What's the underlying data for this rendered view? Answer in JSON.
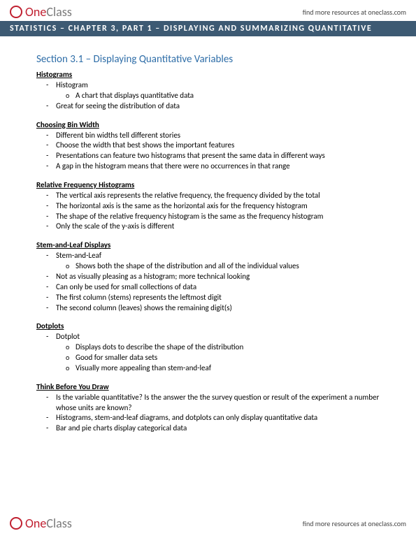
{
  "brand": {
    "one": "One",
    "class": "Class"
  },
  "header_link": "find more resources at oneclass.com",
  "banner": "STATISTICS – CHAPTER 3, PART 1 – DISPLAYING AND SUMMARIZING QUANTITATIVE",
  "section_title": "Section 3.1 – Displaying Quantitative Variables",
  "sections": [
    {
      "heading": "Histograms",
      "items": [
        {
          "text": "Histogram",
          "sub": [
            "A chart that displays quantitative data"
          ]
        },
        {
          "text": "Great for seeing the distribution of data"
        }
      ]
    },
    {
      "heading": "Choosing Bin Width",
      "items": [
        {
          "text": "Different bin widths tell different stories"
        },
        {
          "text": "Choose the width that best shows the important features"
        },
        {
          "text": "Presentations can feature two histograms that present the same data in different ways"
        },
        {
          "text": "A gap in the histogram means that there were no occurrences in that range"
        }
      ]
    },
    {
      "heading": "Relative Frequency Histograms",
      "items": [
        {
          "text": "The vertical axis represents the relative frequency, the frequency divided by the total"
        },
        {
          "text": "The horizontal axis is the same as the horizontal axis for the frequency histogram"
        },
        {
          "text": "The shape of the relative frequency histogram is the same as the frequency histogram"
        },
        {
          "text": "Only the scale of the y-axis is different"
        }
      ]
    },
    {
      "heading": "Stem-and-Leaf Displays",
      "items": [
        {
          "text": "Stem-and-Leaf",
          "sub": [
            "Shows both the shape of the distribution and all of the individual values"
          ]
        },
        {
          "text": "Not as visually pleasing as a histogram; more technical looking"
        },
        {
          "text": "Can only be used for small collections of data"
        },
        {
          "text": "The first column (stems) represents the leftmost digit"
        },
        {
          "text": "The second column (leaves) shows the remaining digit(s)"
        }
      ]
    },
    {
      "heading": "Dotplots",
      "items": [
        {
          "text": "Dotplot",
          "sub": [
            "Displays dots to describe the shape of the distribution",
            "Good for smaller data sets",
            "Visually more appealing than stem-and-leaf"
          ]
        }
      ]
    },
    {
      "heading": "Think Before You Draw",
      "items": [
        {
          "text": "Is the variable quantitative? Is the answer the the survey question or result of the experiment a number whose units are known?"
        },
        {
          "text": "Histograms, stem-and-leaf diagrams, and dotplots can only display quantitative data"
        },
        {
          "text": "Bar and pie charts display categorical data"
        }
      ]
    }
  ],
  "footer_link": "find more resources at oneclass.com",
  "colors": {
    "banner_bg": "#3d5a73",
    "section_title": "#2f6ea8",
    "logo_accent": "#c02030"
  }
}
